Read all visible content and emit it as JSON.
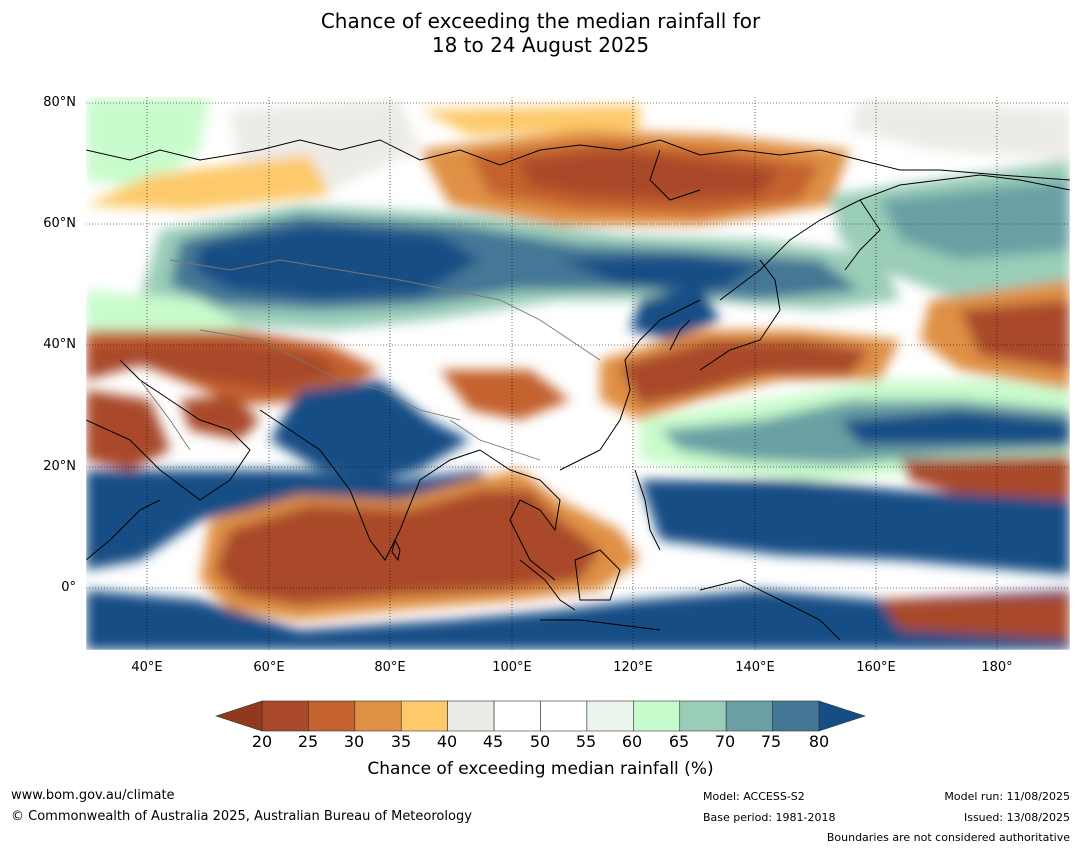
{
  "title": {
    "line1": "Chance of exceeding the median rainfall for",
    "line2": "18 to 24 August 2025"
  },
  "map": {
    "lon_range": [
      30,
      192
    ],
    "lat_range": [
      -10,
      80
    ],
    "lat_labels": [
      "80°N",
      "60°N",
      "40°N",
      "20°N",
      "0°"
    ],
    "lat_values": [
      80,
      60,
      40,
      20,
      0
    ],
    "lon_labels": [
      "40°E",
      "60°E",
      "80°E",
      "100°E",
      "120°E",
      "140°E",
      "160°E",
      "180°"
    ],
    "lon_values": [
      40,
      60,
      80,
      100,
      120,
      140,
      160,
      180
    ],
    "gridlines": true,
    "coastlines": true,
    "country_boundaries": true
  },
  "colorbar": {
    "label": "Chance of exceeding median rainfall (%)",
    "ticks": [
      "20",
      "25",
      "30",
      "35",
      "40",
      "45",
      "50",
      "55",
      "60",
      "65",
      "70",
      "75",
      "80"
    ],
    "under_color": "#8f3a1f",
    "over_color": "#154d85",
    "colors": [
      "#a9482a",
      "#c4622f",
      "#df9044",
      "#fdc96b",
      "#edebe6",
      "#ffffff",
      "#ffffff",
      "#ebf5eb",
      "#c9fccc",
      "#9acdb8",
      "#6aa0a4",
      "#447796"
    ]
  },
  "footer": {
    "website": "www.bom.gov.au/climate",
    "copyright": "© Commonwealth of Australia 2025, Australian Bureau of Meteorology",
    "model": "Model: ACCESS-S2",
    "base_period": "Base period: 1981-2018",
    "model_run": "Model run: 11/08/2025",
    "issued": "Issued: 13/08/2025",
    "disclaimer": "Boundaries are not considered authoritative"
  }
}
